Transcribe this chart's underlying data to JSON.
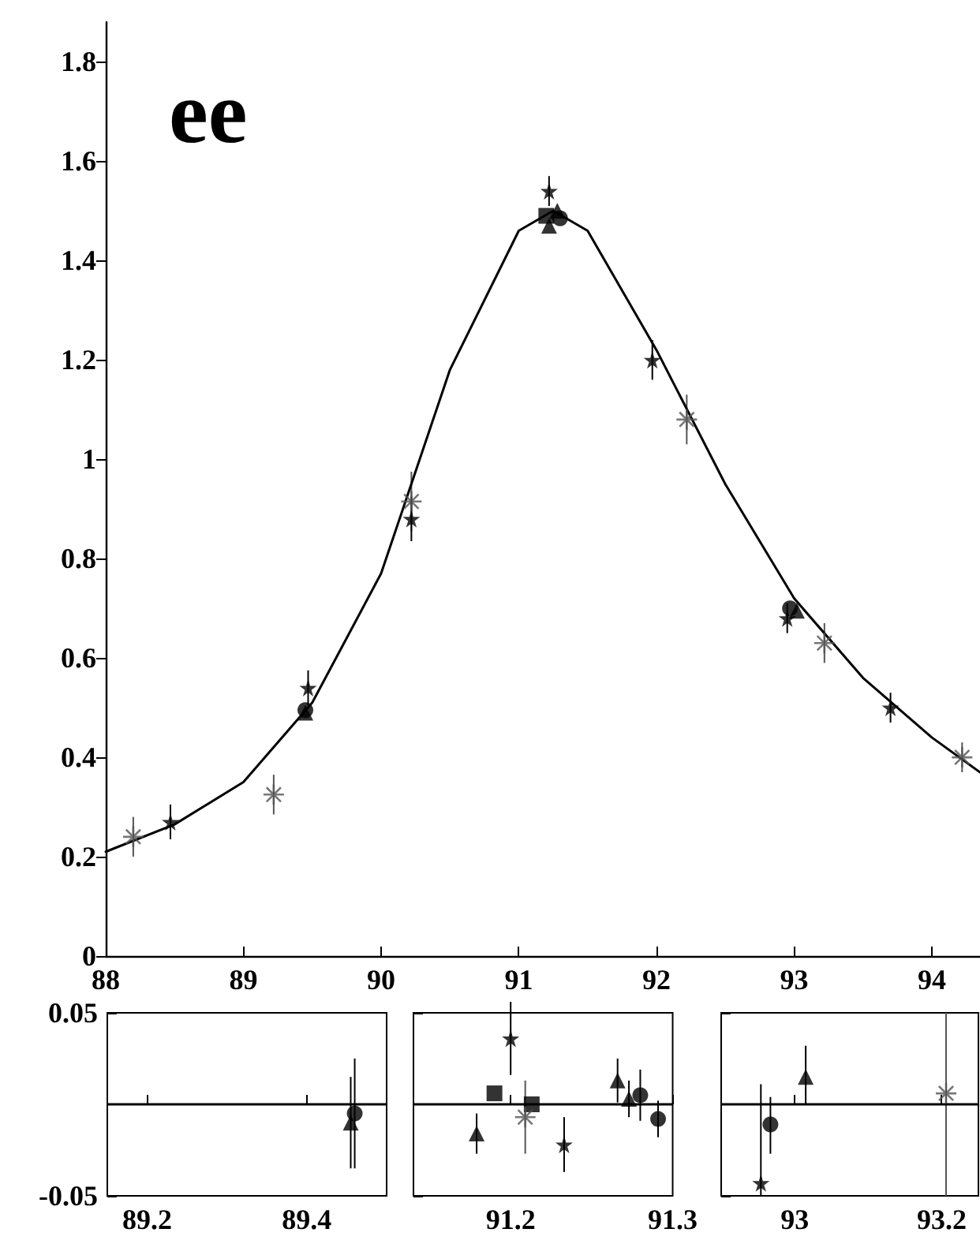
{
  "chart_data": [
    {
      "type": "scatter",
      "xlim": [
        88,
        94.35
      ],
      "xticks": [
        88,
        89,
        90,
        91,
        92,
        93,
        94
      ],
      "ylim": [
        0,
        1.88
      ],
      "yticks": [
        0,
        0.2,
        0.4,
        0.6,
        0.8,
        1,
        1.2,
        1.4,
        1.6,
        1.8
      ],
      "grid": false,
      "annotations": [
        "ee"
      ],
      "series": [
        {
          "type": "line",
          "marker": "none",
          "line_style": "solid",
          "color": "#000000",
          "x": [
            88,
            88.5,
            89,
            89.5,
            90,
            90.5,
            91,
            91.25,
            91.5,
            92,
            92.5,
            93,
            93.5,
            94,
            94.35
          ],
          "values": [
            0.21,
            0.265,
            0.35,
            0.51,
            0.77,
            1.18,
            1.46,
            1.5,
            1.46,
            1.22,
            0.95,
            0.72,
            0.56,
            0.44,
            0.37
          ]
        },
        {
          "marker": "cross",
          "color": "#555555",
          "x": [
            88.2,
            89.22,
            90.22,
            92.22,
            93.22,
            94.22
          ],
          "values": [
            0.24,
            0.325,
            0.915,
            1.08,
            0.63,
            0.4
          ],
          "errors": [
            0.04,
            0.04,
            0.06,
            0.05,
            0.04,
            0.03
          ]
        },
        {
          "marker": "star",
          "color": "#000000",
          "x": [
            88.47,
            89.47,
            90.22,
            91.22,
            91.97,
            92.95,
            93.7
          ],
          "values": [
            0.27,
            0.54,
            0.88,
            1.54,
            1.2,
            0.68,
            0.5
          ],
          "errors": [
            0.035,
            0.035,
            0.045,
            0.03,
            0.04,
            0.03,
            0.03
          ]
        },
        {
          "marker": "circle",
          "color": "#000000",
          "x": [
            89.45,
            91.3,
            92.97
          ],
          "values": [
            0.495,
            1.485,
            0.7
          ]
        },
        {
          "marker": "square",
          "color": "#000000",
          "x": [
            91.2
          ],
          "values": [
            1.49
          ]
        },
        {
          "marker": "triangle",
          "color": "#000000",
          "x": [
            89.45,
            91.22,
            93.02,
            91.28
          ],
          "values": [
            0.49,
            1.47,
            0.695,
            1.5
          ]
        }
      ]
    },
    {
      "type": "scatter",
      "xlim": [
        89.15,
        89.5
      ],
      "xticks": [
        89.2,
        89.4
      ],
      "ylim": [
        -0.05,
        0.05
      ],
      "yticks": [
        -0.05,
        0.05
      ],
      "grid": false,
      "ref_lines": [
        {
          "axis": "y",
          "value": 0
        }
      ],
      "series": [
        {
          "marker": "triangle",
          "color": "#000000",
          "x": [
            89.455
          ],
          "values": [
            -0.01
          ],
          "errors": [
            0.025
          ]
        },
        {
          "marker": "circle",
          "color": "#000000",
          "x": [
            89.46
          ],
          "values": [
            -0.005
          ],
          "errors": [
            0.03
          ]
        }
      ]
    },
    {
      "type": "scatter",
      "xlim": [
        91.14,
        91.3
      ],
      "xticks": [
        91.2,
        91.3
      ],
      "ylim": [
        -0.05,
        0.05
      ],
      "yticks": [
        -0.05,
        0.05
      ],
      "tick_labels": "x",
      "grid": false,
      "ref_lines": [
        {
          "axis": "y",
          "value": 0
        }
      ],
      "series": [
        {
          "marker": "triangle",
          "color": "#000000",
          "x": [
            91.179,
            91.266,
            91.273
          ],
          "values": [
            -0.016,
            0.013,
            0.003
          ],
          "errors": [
            0.011,
            0.012,
            0.01
          ]
        },
        {
          "marker": "square",
          "color": "#000000",
          "x": [
            91.19,
            91.213
          ],
          "values": [
            0.006,
            0
          ]
        },
        {
          "marker": "star",
          "color": "#000000",
          "x": [
            91.2,
            91.233
          ],
          "values": [
            0.036,
            -0.022
          ],
          "errors": [
            0.02,
            0.015
          ]
        },
        {
          "marker": "cross",
          "color": "#555555",
          "x": [
            91.209
          ],
          "values": [
            -0.007
          ],
          "errors": [
            0.02
          ]
        },
        {
          "marker": "circle",
          "color": "#000000",
          "x": [
            91.28,
            91.291
          ],
          "values": [
            0.005,
            -0.008
          ],
          "errors": [
            0.014,
            0.01
          ]
        }
      ]
    },
    {
      "type": "scatter",
      "xlim": [
        92.9,
        93.25
      ],
      "xticks": [
        93,
        93.2
      ],
      "ylim": [
        -0.05,
        0.05
      ],
      "yticks": [
        -0.05,
        0.05
      ],
      "tick_labels": "x",
      "grid": false,
      "ref_lines": [
        {
          "axis": "y",
          "value": 0
        }
      ],
      "series": [
        {
          "marker": "star",
          "color": "#000000",
          "x": [
            92.954
          ],
          "values": [
            -0.043
          ],
          "errors": [
            [
              -0.05,
              0.011
            ]
          ]
        },
        {
          "marker": "circle",
          "color": "#000000",
          "x": [
            92.967
          ],
          "values": [
            -0.011
          ],
          "errors": [
            [
              -0.027,
              0.004
            ]
          ]
        },
        {
          "marker": "triangle",
          "color": "#000000",
          "x": [
            93.015
          ],
          "values": [
            0.015
          ],
          "errors": [
            [
              0,
              0.032
            ]
          ]
        },
        {
          "marker": "cross",
          "color": "#555555",
          "x": [
            93.206
          ],
          "values": [
            0.006
          ],
          "errors": [
            [
              -0.05,
              0.05
            ]
          ]
        }
      ]
    }
  ]
}
